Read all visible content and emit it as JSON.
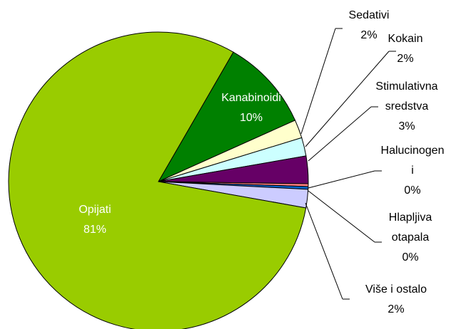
{
  "chart_data": {
    "type": "pie",
    "categories": [
      "Opijati",
      "Kanabinoidi",
      "Sedativi",
      "Kokain",
      "Stimulativna\nsredstva",
      "Halucinogen\ni",
      "Hlapljiva\notapala",
      "Više i ostalo"
    ],
    "values": [
      81,
      10,
      2,
      2,
      3,
      0.3,
      0.3,
      2
    ],
    "value_labels": [
      "81%",
      "10%",
      "2%",
      "2%",
      "3%",
      "0%",
      "0%",
      "2%"
    ],
    "colors": [
      "#99cc00",
      "#008000",
      "#ffffcc",
      "#ccffff",
      "#660066",
      "#ff8080",
      "#0066cc",
      "#ccccff"
    ]
  }
}
